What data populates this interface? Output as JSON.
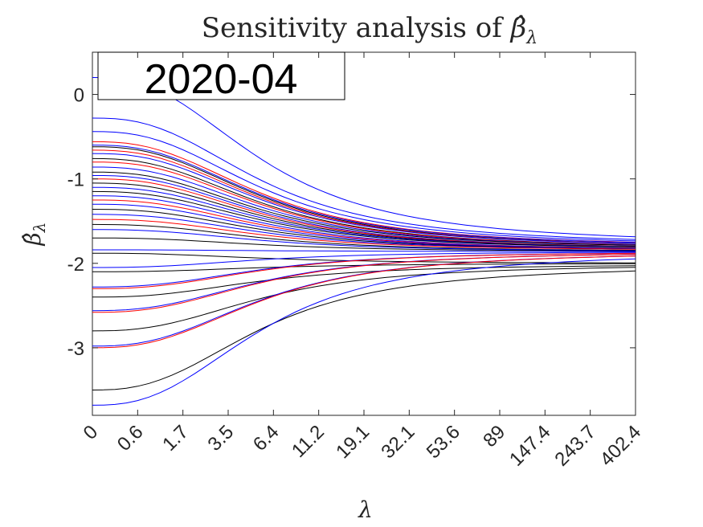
{
  "chart_data": {
    "type": "line",
    "title_text": "Sensitivity analysis of ",
    "title_symbol": "β̂",
    "title_sub": "λ",
    "xlabel": "λ",
    "ylabel_symbol": "β̂",
    "ylabel_sub": "λ",
    "annotation": "2020-04",
    "x_ticks": [
      "0",
      "0.6",
      "1.7",
      "3.5",
      "6.4",
      "11.2",
      "19.1",
      "32.1",
      "53.6",
      "89",
      "147.4",
      "243.7",
      "402.4"
    ],
    "y_ticks": [
      0,
      -1,
      -2,
      -3
    ],
    "y_tick_labels": [
      "0",
      "-1",
      "-2",
      "-3"
    ],
    "ylim": [
      -3.8,
      0.5
    ],
    "x_index_range": [
      0,
      12
    ],
    "grid": false,
    "colors": {
      "blue": "#0000ff",
      "red": "#ff0000",
      "black": "#000000",
      "axis": "#262626"
    },
    "series": [
      {
        "color": "blue",
        "start": 0.2,
        "end": -1.78
      },
      {
        "color": "blue",
        "start": -0.28,
        "end": -1.79
      },
      {
        "color": "blue",
        "start": -0.44,
        "end": -1.8
      },
      {
        "color": "red",
        "start": -0.56,
        "end": -1.81
      },
      {
        "color": "blue",
        "start": -0.6,
        "end": -1.81
      },
      {
        "color": "black",
        "start": -0.62,
        "end": -1.82
      },
      {
        "color": "red",
        "start": -0.66,
        "end": -1.82
      },
      {
        "color": "blue",
        "start": -0.7,
        "end": -1.82
      },
      {
        "color": "black",
        "start": -0.76,
        "end": -1.83
      },
      {
        "color": "red",
        "start": -0.8,
        "end": -1.83
      },
      {
        "color": "blue",
        "start": -0.86,
        "end": -1.83
      },
      {
        "color": "black",
        "start": -0.92,
        "end": -1.83
      },
      {
        "color": "blue",
        "start": -0.96,
        "end": -1.84
      },
      {
        "color": "red",
        "start": -1.0,
        "end": -1.84
      },
      {
        "color": "black",
        "start": -1.05,
        "end": -1.84
      },
      {
        "color": "blue",
        "start": -1.1,
        "end": -1.84
      },
      {
        "color": "black",
        "start": -1.15,
        "end": -1.84
      },
      {
        "color": "blue",
        "start": -1.2,
        "end": -1.85
      },
      {
        "color": "red",
        "start": -1.25,
        "end": -1.85
      },
      {
        "color": "blue",
        "start": -1.3,
        "end": -1.85
      },
      {
        "color": "black",
        "start": -1.36,
        "end": -1.85
      },
      {
        "color": "blue",
        "start": -1.42,
        "end": -1.85
      },
      {
        "color": "red",
        "start": -1.48,
        "end": -1.85
      },
      {
        "color": "black",
        "start": -1.54,
        "end": -1.86
      },
      {
        "color": "blue",
        "start": -1.6,
        "end": -1.86
      },
      {
        "color": "black",
        "start": -1.7,
        "end": -1.86
      },
      {
        "color": "blue",
        "start": -1.84,
        "end": -1.86
      },
      {
        "color": "black",
        "start": -1.88,
        "end": -2.0
      },
      {
        "color": "blue",
        "start": -2.05,
        "end": -1.86
      },
      {
        "color": "black",
        "start": -2.1,
        "end": -2.0
      },
      {
        "color": "blue",
        "start": -2.28,
        "end": -1.86
      },
      {
        "color": "red",
        "start": -2.3,
        "end": -1.86
      },
      {
        "color": "black",
        "start": -2.4,
        "end": -2.01
      },
      {
        "color": "blue",
        "start": -2.56,
        "end": -1.86
      },
      {
        "color": "red",
        "start": -2.58,
        "end": -1.86
      },
      {
        "color": "black",
        "start": -2.8,
        "end": -2.01
      },
      {
        "color": "blue",
        "start": -2.98,
        "end": -1.86
      },
      {
        "color": "red",
        "start": -3.0,
        "end": -1.86
      },
      {
        "color": "black",
        "start": -3.5,
        "end": -2.02
      },
      {
        "color": "blue",
        "start": -3.68,
        "end": -1.86
      }
    ]
  }
}
